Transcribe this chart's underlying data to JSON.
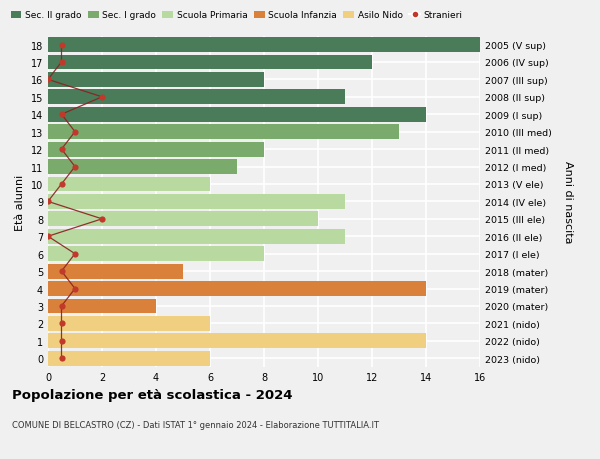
{
  "ages": [
    18,
    17,
    16,
    15,
    14,
    13,
    12,
    11,
    10,
    9,
    8,
    7,
    6,
    5,
    4,
    3,
    2,
    1,
    0
  ],
  "right_labels": [
    "2005 (V sup)",
    "2006 (IV sup)",
    "2007 (III sup)",
    "2008 (II sup)",
    "2009 (I sup)",
    "2010 (III med)",
    "2011 (II med)",
    "2012 (I med)",
    "2013 (V ele)",
    "2014 (IV ele)",
    "2015 (III ele)",
    "2016 (II ele)",
    "2017 (I ele)",
    "2018 (mater)",
    "2019 (mater)",
    "2020 (mater)",
    "2021 (nido)",
    "2022 (nido)",
    "2023 (nido)"
  ],
  "bar_values": [
    17,
    12,
    8,
    11,
    14,
    13,
    8,
    7,
    6,
    11,
    10,
    11,
    8,
    5,
    14,
    4,
    6,
    14,
    6
  ],
  "bar_colors": [
    "#4a7c59",
    "#4a7c59",
    "#4a7c59",
    "#4a7c59",
    "#4a7c59",
    "#7aab6d",
    "#7aab6d",
    "#7aab6d",
    "#b8d9a0",
    "#b8d9a0",
    "#b8d9a0",
    "#b8d9a0",
    "#b8d9a0",
    "#d9813a",
    "#d9813a",
    "#d9813a",
    "#f0d080",
    "#f0d080",
    "#f0d080"
  ],
  "stranieri_x": [
    0.5,
    0.5,
    0,
    2,
    0.5,
    1,
    0.5,
    1,
    0.5,
    0,
    2,
    0,
    1,
    0.5,
    1,
    0.5,
    0.5,
    0.5,
    0.5
  ],
  "title": "Popolazione per età scolastica - 2024",
  "subtitle": "COMUNE DI BELCASTRO (CZ) - Dati ISTAT 1° gennaio 2024 - Elaborazione TUTTITALIA.IT",
  "ylabel": "Età alunni",
  "right_ylabel": "Anni di nascita",
  "xlim": [
    0,
    16
  ],
  "legend_labels": [
    "Sec. II grado",
    "Sec. I grado",
    "Scuola Primaria",
    "Scuola Infanzia",
    "Asilo Nido",
    "Stranieri"
  ],
  "legend_colors": [
    "#4a7c59",
    "#7aab6d",
    "#b8d9a0",
    "#d9813a",
    "#f0d080",
    "#c0392b"
  ],
  "bg_color": "#f0f0f0",
  "grid_color": "#ffffff",
  "bar_height": 0.85,
  "stranieri_color": "#c0392b",
  "stranieri_line_color": "#8b2020"
}
